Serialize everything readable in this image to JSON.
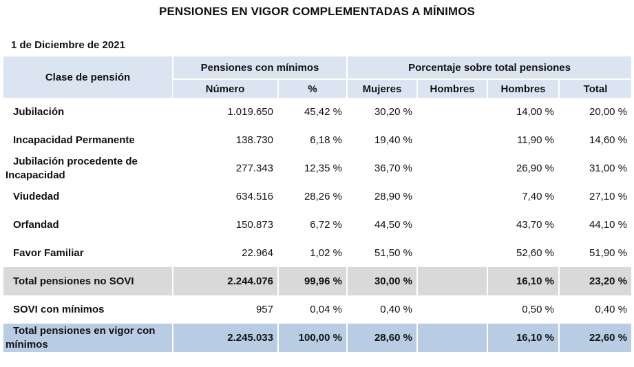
{
  "title": "PENSIONES EN VIGOR COMPLEMENTADAS A MÍNIMOS",
  "date": "1 de Diciembre de 2021",
  "header": {
    "clase": "Clase de pensión",
    "group1": "Pensiones con mínimos",
    "group2": "Porcentaje sobre total pensiones",
    "numero": "Número",
    "pct": "%",
    "mujeres": "Mujeres",
    "hombres1": "Hombres",
    "hombres2": "Hombres",
    "total": "Total"
  },
  "rows": [
    {
      "label": "Jubilación",
      "numero": "1.019.650",
      "pct": "45,42 %",
      "mujeres": "30,20 %",
      "hombres1": "",
      "hombres2": "14,00 %",
      "total": "20,00 %"
    },
    {
      "label": "Incapacidad Permanente",
      "numero": "138.730",
      "pct": "6,18 %",
      "mujeres": "19,40 %",
      "hombres1": "",
      "hombres2": "11,90 %",
      "total": "14,60 %"
    },
    {
      "label": "Jubilación procedente de Incapacidad",
      "numero": "277.343",
      "pct": "12,35 %",
      "mujeres": "36,70 %",
      "hombres1": "",
      "hombres2": "26,90 %",
      "total": "31,00 %"
    },
    {
      "label": "Viudedad",
      "numero": "634.516",
      "pct": "28,26 %",
      "mujeres": "28,90 %",
      "hombres1": "",
      "hombres2": "7,40 %",
      "total": "27,10 %"
    },
    {
      "label": "Orfandad",
      "numero": "150.873",
      "pct": "6,72 %",
      "mujeres": "44,50 %",
      "hombres1": "",
      "hombres2": "43,70 %",
      "total": "44,10 %"
    },
    {
      "label": "Favor Familiar",
      "numero": "22.964",
      "pct": "1,02 %",
      "mujeres": "51,50 %",
      "hombres1": "",
      "hombres2": "52,60 %",
      "total": "51,90 %"
    },
    {
      "label": "Total pensiones no SOVI",
      "numero": "2.244.076",
      "pct": "99,96 %",
      "mujeres": "30,00 %",
      "hombres1": "",
      "hombres2": "16,10 %",
      "total": "23,20 %"
    },
    {
      "label": "SOVI con mínimos",
      "numero": "957",
      "pct": "0,04 %",
      "mujeres": "0,40 %",
      "hombres1": "",
      "hombres2": "0,50 %",
      "total": "0,40 %"
    },
    {
      "label": "Total pensiones en vigor con mínimos",
      "numero": "2.245.033",
      "pct": "100,00 %",
      "mujeres": "28,60 %",
      "hombres1": "",
      "hombres2": "16,10 %",
      "total": "22,60 %"
    }
  ],
  "colors": {
    "header_bg": "#dbe5f1",
    "subtotal_bg": "#d9d9d9",
    "total_bg": "#b8cce4"
  }
}
